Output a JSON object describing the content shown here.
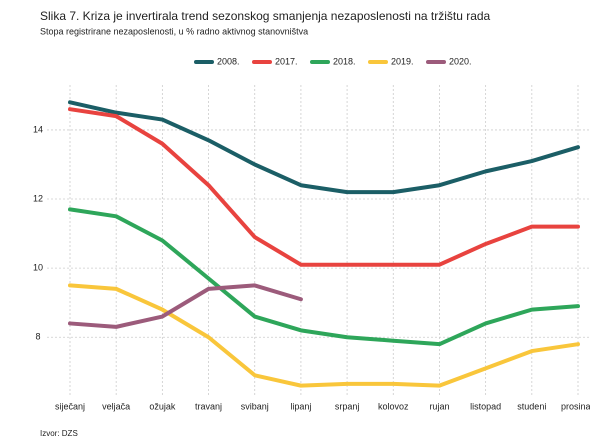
{
  "chart_data": {
    "type": "line",
    "title": "Slika 7. Kriza je invertirala trend sezonskog smanjenja nezaposlenosti na tržištu rada",
    "subtitle": "Stopa registrirane nezaposlenosti, u % radno aktivnog stanovništva",
    "source": "Izvor: DZS",
    "categories": [
      "siječanj",
      "veljača",
      "ožujak",
      "travanj",
      "svibanj",
      "lipanj",
      "srpanj",
      "kolovoz",
      "rujan",
      "listopad",
      "studeni",
      "prosinac"
    ],
    "series": [
      {
        "name": "2008.",
        "color": "#1b5e66",
        "values": [
          14.8,
          14.5,
          14.3,
          13.7,
          13.0,
          12.4,
          12.2,
          12.2,
          12.4,
          12.8,
          13.1,
          13.5
        ]
      },
      {
        "name": "2017.",
        "color": "#e8433f",
        "values": [
          14.6,
          14.4,
          13.6,
          12.4,
          10.9,
          10.1,
          10.1,
          10.1,
          10.1,
          10.7,
          11.2,
          11.2
        ]
      },
      {
        "name": "2018.",
        "color": "#2ea65a",
        "values": [
          11.7,
          11.5,
          10.8,
          9.7,
          8.6,
          8.2,
          8.0,
          7.9,
          7.8,
          8.4,
          8.8,
          8.9
        ]
      },
      {
        "name": "2019.",
        "color": "#f9c63b",
        "values": [
          9.5,
          9.4,
          8.8,
          8.0,
          6.9,
          6.6,
          6.65,
          6.65,
          6.6,
          7.1,
          7.6,
          7.8
        ]
      },
      {
        "name": "2020.",
        "color": "#9c5b7b",
        "values": [
          8.4,
          8.3,
          8.6,
          9.4,
          9.5,
          9.1,
          null,
          null,
          null,
          null,
          null,
          null
        ]
      }
    ],
    "ylim": [
      6.3,
      15.3
    ],
    "yticks": [
      8,
      10,
      12,
      14
    ],
    "grid": true,
    "legend": "top"
  }
}
